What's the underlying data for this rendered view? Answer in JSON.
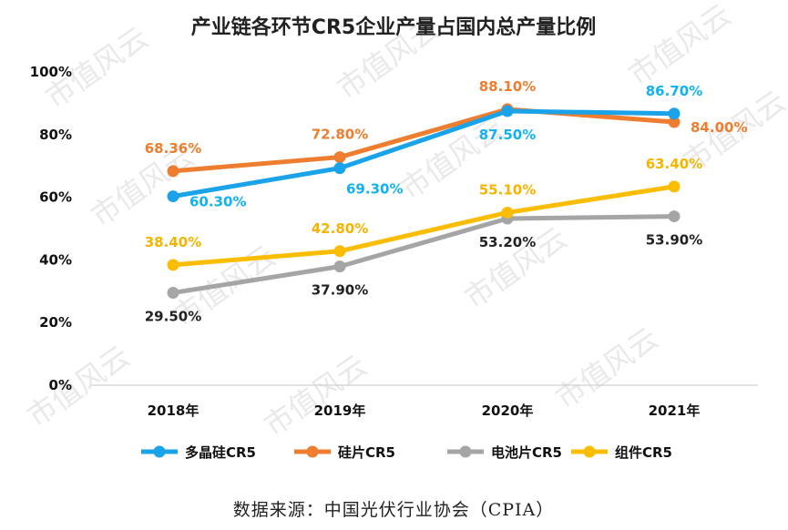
{
  "watermark": "市值风云",
  "source": "数据来源：中国光伏行业协会（CPIA）",
  "chart_data": {
    "type": "line",
    "title": "产业链各环节CR5企业产量占国内总产量比例",
    "categories": [
      "2018年",
      "2019年",
      "2020年",
      "2021年"
    ],
    "ylim": [
      0,
      100
    ],
    "yticks": [
      0,
      20,
      40,
      60,
      80,
      100
    ],
    "ytick_labels": [
      "0%",
      "20%",
      "40%",
      "60%",
      "80%",
      "100%"
    ],
    "xlabel": "",
    "ylabel": "",
    "grid": false,
    "legend_position": "bottom",
    "series": [
      {
        "name": "多晶硅CR5",
        "color": "#1aa3e8",
        "label_color": "#12b2f0",
        "values": [
          60.3,
          69.3,
          87.5,
          86.7
        ],
        "labels": [
          "60.30%",
          "69.30%",
          "87.50%",
          "86.70%"
        ],
        "label_pos": [
          "right",
          "below-right",
          "below",
          "above"
        ]
      },
      {
        "name": "硅片CR5",
        "color": "#ee7d2f",
        "label_color": "#ee7d2f",
        "values": [
          68.36,
          72.8,
          88.1,
          84.0
        ],
        "labels": [
          "68.36%",
          "72.80%",
          "88.10%",
          "84.00%"
        ],
        "label_pos": [
          "above",
          "above",
          "above",
          "right"
        ]
      },
      {
        "name": "电池片CR5",
        "color": "#a5a5a5",
        "label_color": "#222222",
        "values": [
          29.5,
          37.9,
          53.2,
          53.9
        ],
        "labels": [
          "29.50%",
          "37.90%",
          "53.20%",
          "53.90%"
        ],
        "label_pos": [
          "below",
          "below",
          "below",
          "below"
        ]
      },
      {
        "name": "组件CR5",
        "color": "#fbbd04",
        "label_color": "#f4b400",
        "values": [
          38.4,
          42.8,
          55.1,
          63.4
        ],
        "labels": [
          "38.40%",
          "42.80%",
          "55.10%",
          "63.40%"
        ],
        "label_pos": [
          "above",
          "above",
          "above",
          "above"
        ]
      }
    ]
  }
}
